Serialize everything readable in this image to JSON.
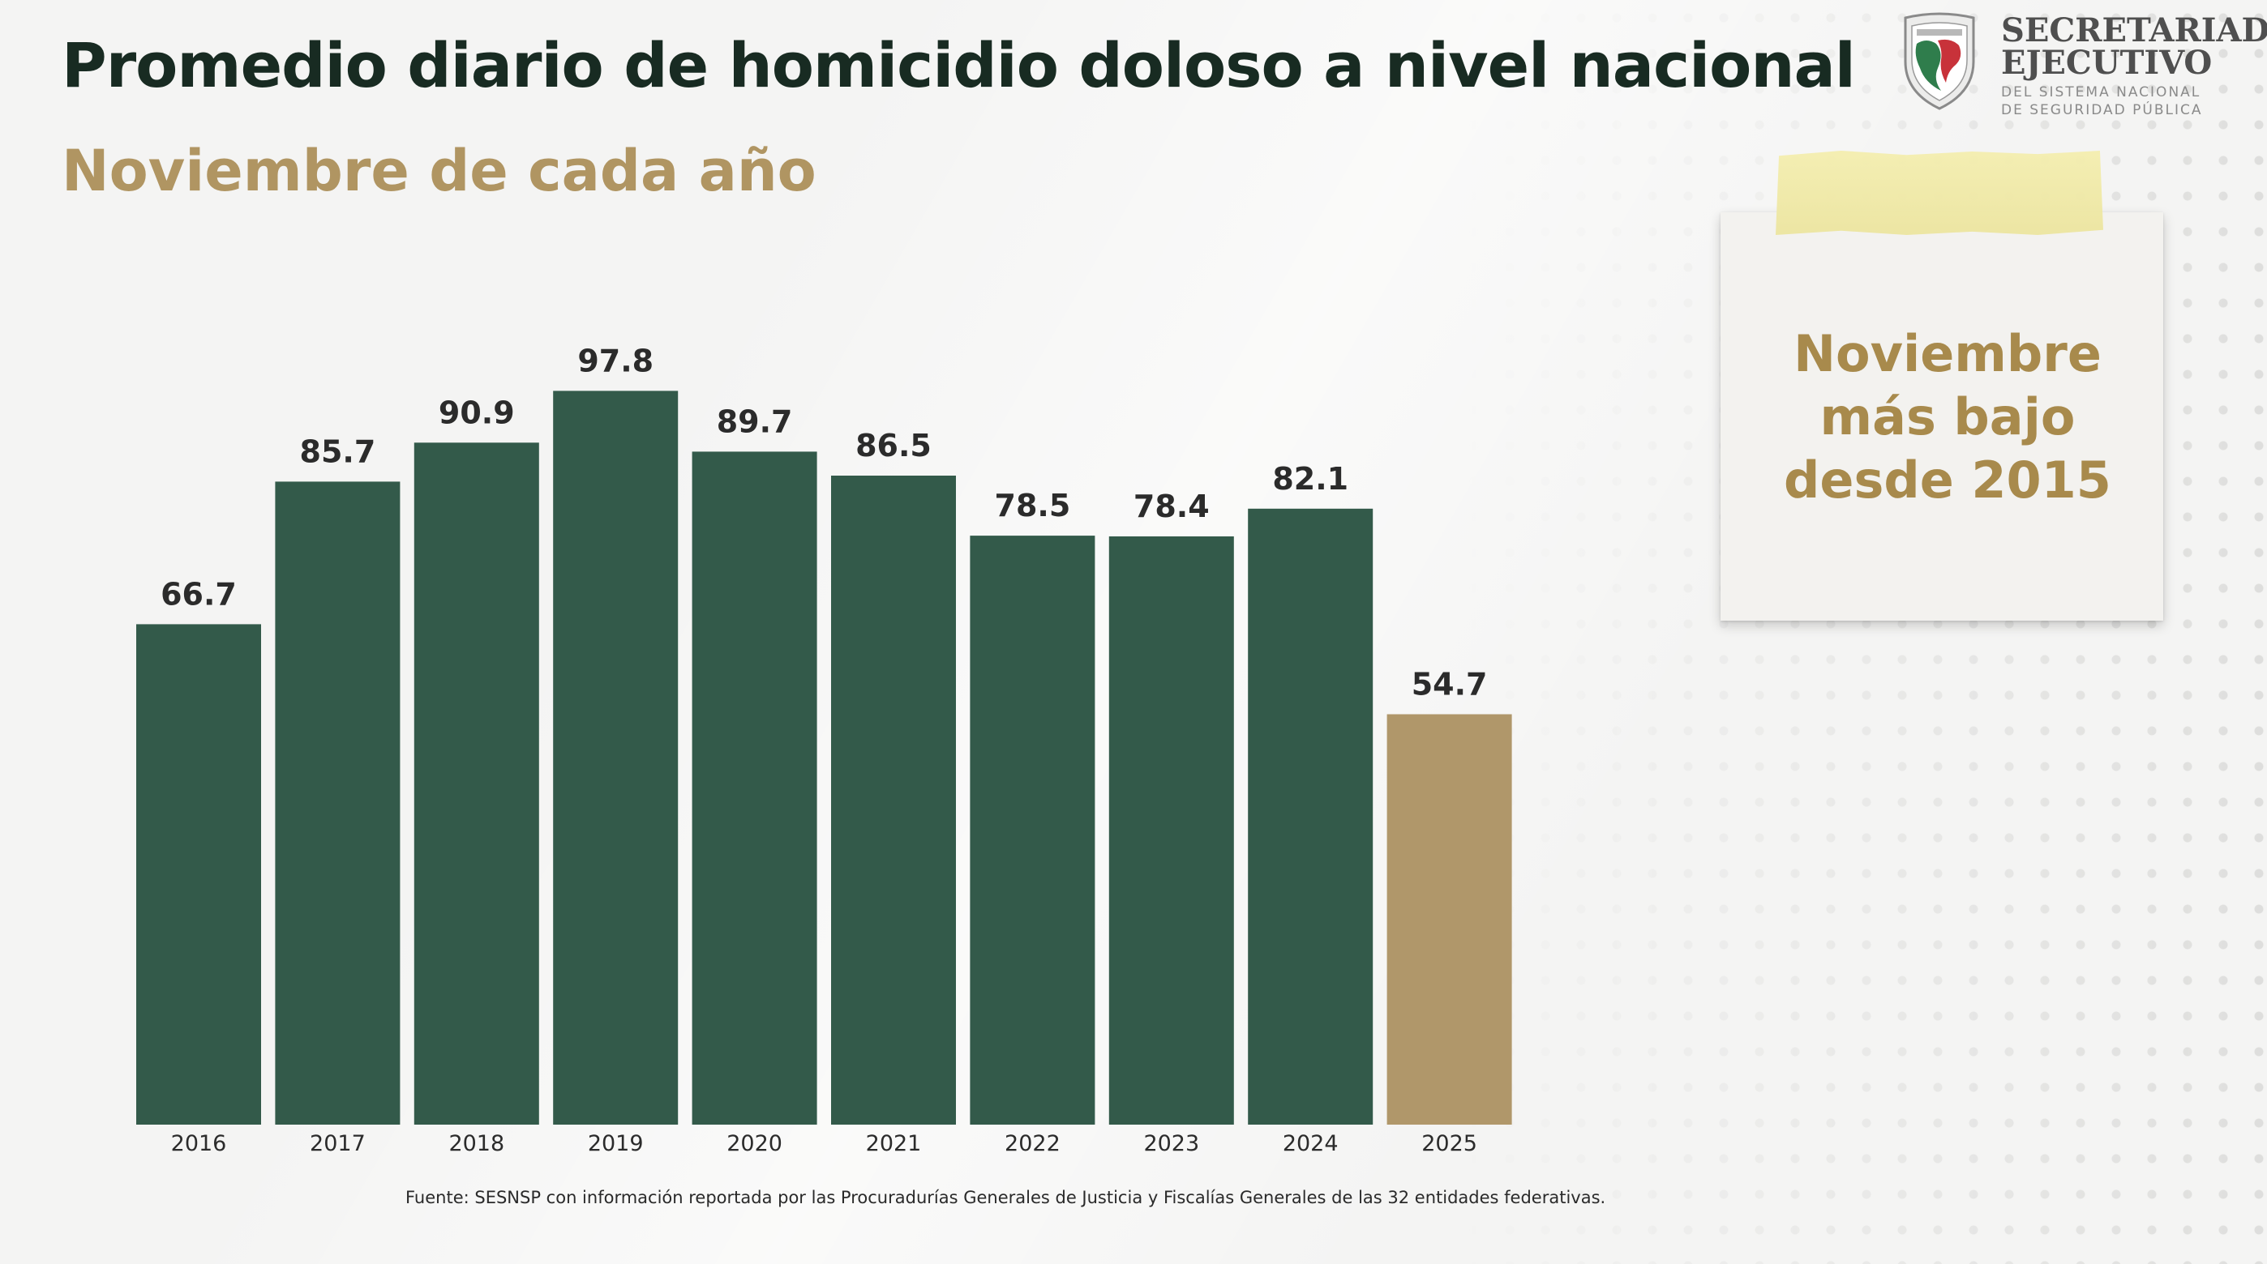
{
  "header": {
    "title": "Promedio diario de homicidio doloso a nivel nacional",
    "subtitle": "Noviembre de cada año"
  },
  "logo": {
    "line1": "SECRETARIADO",
    "line2": "EJECUTIVO",
    "small1": "DEL SISTEMA NACIONAL",
    "small2": "DE SEGURIDAD PÚBLICA",
    "icon": "shield-icon"
  },
  "note": {
    "lines": [
      "Noviembre",
      "más bajo",
      "desde 2015"
    ]
  },
  "footnote": "Fuente: SESNSP con información reportada por las Procuradurías Generales de Justicia y Fiscalías Generales de las 32 entidades federativas.",
  "colors": {
    "bar": "#335a4a",
    "bar_highlight": "#b0976a",
    "title": "#182b22",
    "subtitle": "#b09562",
    "note_text": "#a88a4c"
  },
  "chart_data": {
    "type": "bar",
    "title": "Promedio diario de homicidio doloso a nivel nacional",
    "subtitle": "Noviembre de cada año",
    "categories": [
      "2016",
      "2017",
      "2018",
      "2019",
      "2020",
      "2021",
      "2022",
      "2023",
      "2024",
      "2025"
    ],
    "values": [
      66.7,
      85.7,
      90.9,
      97.8,
      89.7,
      86.5,
      78.5,
      78.4,
      82.1,
      54.7
    ],
    "value_labels": [
      "66.7",
      "85.7",
      "90.9",
      "97.8",
      "89.7",
      "86.5",
      "78.5",
      "78.4",
      "82.1",
      "54.7"
    ],
    "highlight_category": "2025",
    "ylim": [
      0,
      100
    ],
    "grid": false,
    "legend": "none",
    "xlabel": "",
    "ylabel": ""
  }
}
